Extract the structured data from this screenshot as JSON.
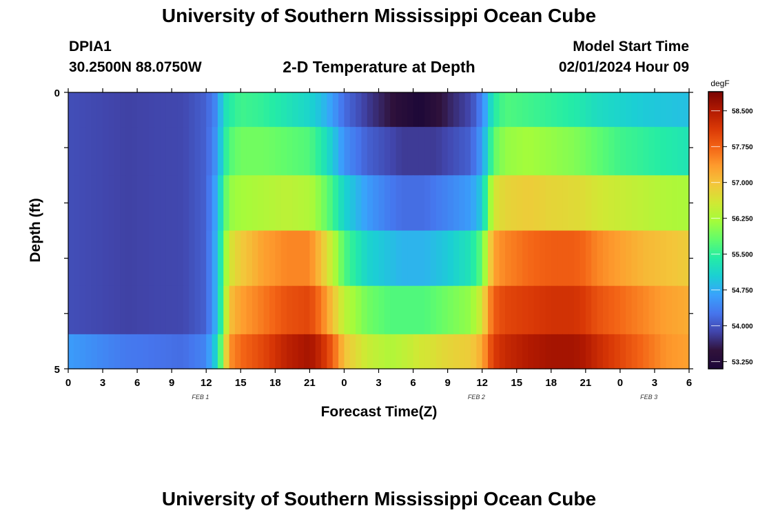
{
  "page": {
    "title": "University of Southern Mississippi Ocean Cube",
    "title_repeat": "University of Southern Mississippi Ocean Cube"
  },
  "station": {
    "id": "DPIA1",
    "coords": "30.2500N  88.0750W"
  },
  "model": {
    "label": "Model Start Time",
    "start": "02/01/2024 Hour 09"
  },
  "chart_data": {
    "type": "heatmap",
    "title": "2-D Temperature at Depth",
    "xlabel": "Forecast Time(Z)",
    "ylabel": "Depth (ft)",
    "units": "degF",
    "x_tick_labels": [
      "0",
      "3",
      "6",
      "9",
      "12",
      "15",
      "18",
      "21",
      "0",
      "3",
      "6",
      "9",
      "12",
      "15",
      "18",
      "21",
      "0",
      "3",
      "6"
    ],
    "date_labels": [
      {
        "label": "FEB 1",
        "hour": 11.5
      },
      {
        "label": "FEB 2",
        "hour": 35.5
      },
      {
        "label": "FEB 3",
        "hour": 50.5
      }
    ],
    "x_range_hours": [
      0,
      54
    ],
    "y_tick_labels": [
      "0",
      "5"
    ],
    "ylim": [
      0,
      5
    ],
    "depth_levels": [
      0.25,
      1.0,
      2.0,
      3.0,
      4.0,
      4.75
    ],
    "colorbar": {
      "ticks": [
        "58.500",
        "57.750",
        "57.000",
        "56.250",
        "55.500",
        "54.750",
        "54.000",
        "53.250"
      ],
      "range": [
        53.1,
        58.9
      ],
      "colors": [
        "#1d0838",
        "#30123b",
        "#4145ab",
        "#4675ed",
        "#39a2fc",
        "#1bcfd4",
        "#24eca6",
        "#61fc6c",
        "#a4fc3b",
        "#d1e834",
        "#f3c63a",
        "#fe9b2d",
        "#f36315",
        "#d93806",
        "#b11901",
        "#7a0403"
      ]
    },
    "time_knots_hours": [
      0,
      5,
      10,
      12,
      13,
      13.5,
      14,
      15,
      17,
      19,
      21,
      22,
      23,
      24,
      26,
      28,
      29,
      30,
      30.5,
      31,
      32,
      33,
      35,
      36,
      36.5,
      37,
      38,
      40,
      42,
      44,
      45,
      46,
      48,
      50,
      52,
      54
    ],
    "temperature_rows": [
      [
        53.95,
        53.85,
        53.9,
        54.1,
        54.5,
        55.2,
        55.4,
        55.6,
        55.5,
        55.3,
        55.1,
        54.9,
        54.6,
        54.2,
        53.8,
        53.5,
        53.3,
        53.2,
        53.1,
        53.2,
        53.4,
        53.6,
        53.9,
        54.4,
        54.9,
        55.4,
        55.7,
        55.6,
        55.5,
        55.4,
        55.3,
        55.2,
        55.1,
        55.0,
        54.95,
        54.9
      ],
      [
        53.95,
        53.85,
        53.9,
        54.1,
        54.6,
        55.3,
        55.7,
        55.9,
        55.9,
        55.8,
        55.7,
        55.4,
        55.0,
        54.5,
        54.1,
        53.9,
        53.8,
        53.8,
        53.8,
        53.8,
        53.8,
        53.9,
        54.1,
        54.6,
        55.2,
        55.8,
        56.1,
        56.2,
        56.1,
        56.0,
        55.9,
        55.8,
        55.6,
        55.5,
        55.4,
        55.3
      ],
      [
        53.95,
        53.85,
        53.9,
        54.1,
        54.8,
        55.6,
        56.1,
        56.2,
        56.3,
        56.4,
        56.3,
        56.0,
        55.6,
        55.1,
        54.6,
        54.3,
        54.2,
        54.2,
        54.2,
        54.2,
        54.3,
        54.4,
        54.6,
        55.0,
        55.8,
        56.6,
        56.8,
        56.9,
        56.8,
        56.75,
        56.7,
        56.6,
        56.5,
        56.4,
        56.3,
        56.25
      ],
      [
        53.95,
        53.85,
        53.9,
        54.1,
        54.9,
        55.8,
        56.6,
        56.9,
        57.3,
        57.5,
        57.5,
        57.0,
        56.4,
        55.7,
        55.1,
        54.9,
        54.8,
        54.8,
        54.8,
        54.8,
        54.9,
        55.0,
        55.3,
        55.8,
        56.6,
        57.3,
        57.5,
        57.7,
        57.8,
        57.8,
        57.7,
        57.5,
        57.3,
        57.1,
        57.0,
        56.9
      ],
      [
        53.95,
        53.85,
        53.9,
        54.1,
        54.9,
        55.9,
        57.0,
        57.3,
        57.6,
        57.9,
        58.0,
        57.6,
        57.0,
        56.4,
        55.9,
        55.7,
        55.7,
        55.7,
        55.7,
        55.7,
        55.8,
        55.9,
        56.1,
        56.6,
        57.3,
        57.8,
        58.0,
        58.1,
        58.2,
        58.2,
        58.1,
        57.9,
        57.7,
        57.5,
        57.3,
        57.2
      ],
      [
        54.6,
        54.3,
        54.2,
        54.4,
        55.2,
        56.3,
        57.4,
        57.7,
        58.0,
        58.4,
        58.6,
        58.3,
        57.8,
        57.0,
        56.5,
        56.3,
        56.4,
        56.5,
        56.6,
        56.6,
        56.7,
        56.8,
        56.9,
        57.2,
        57.7,
        58.1,
        58.3,
        58.5,
        58.6,
        58.6,
        58.5,
        58.3,
        58.0,
        57.7,
        57.4,
        57.3
      ]
    ]
  }
}
